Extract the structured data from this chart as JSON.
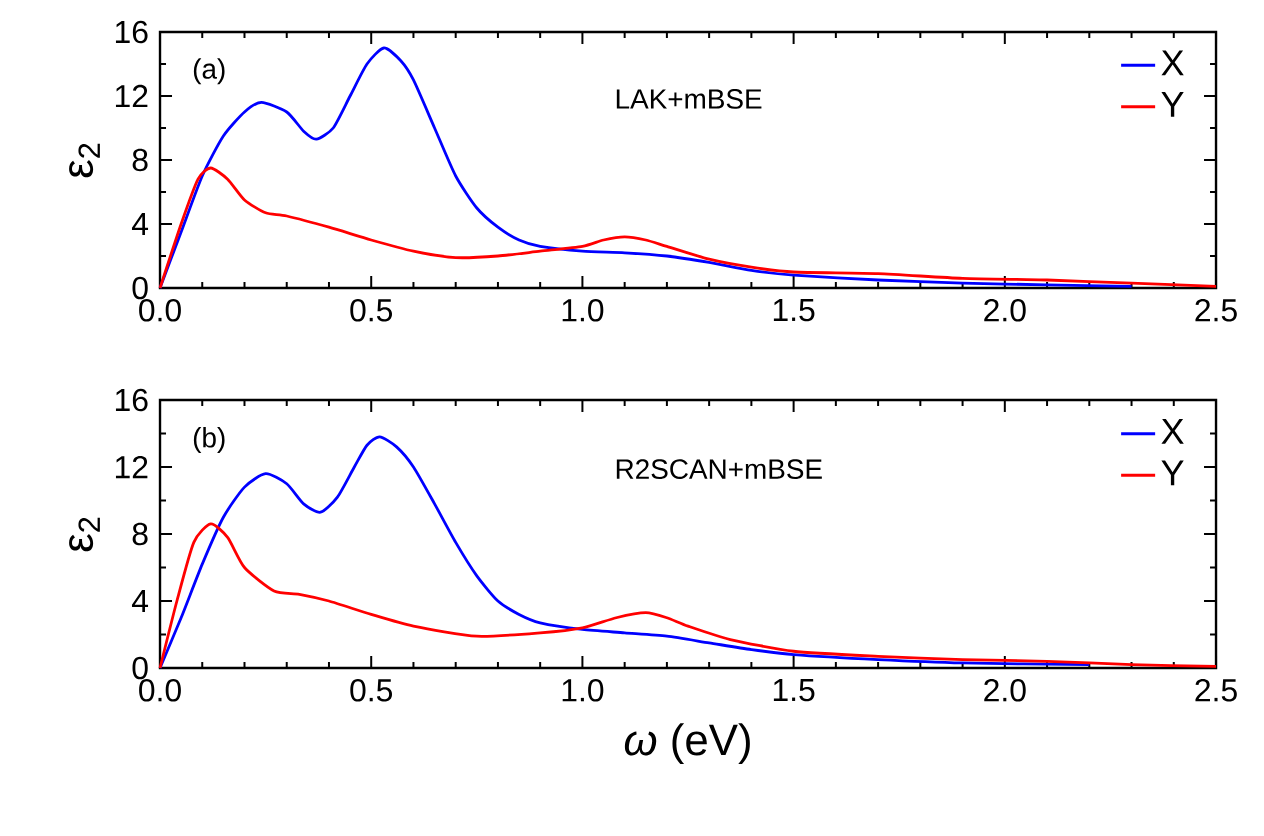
{
  "chart_data": [
    {
      "type": "line",
      "ylabel": "ε$_{2}$",
      "annotations": [
        "(a)",
        "LAK+mBSE"
      ],
      "xlim": [
        0,
        2.5
      ],
      "ylim": [
        0,
        16
      ],
      "xticks": [
        {
          "value": 0,
          "label": "0.0"
        },
        0.5,
        {
          "value": 1,
          "label": "1.0"
        },
        1.5,
        {
          "value": 2,
          "label": "2.0"
        },
        2.5
      ],
      "yticks": [
        0,
        4,
        8,
        12,
        16
      ],
      "legend": "top right",
      "series": [
        {
          "name": "X",
          "color": "#0000ff",
          "x": [
            0,
            0.05,
            0.1,
            0.15,
            0.2,
            0.24,
            0.3,
            0.34,
            0.37,
            0.41,
            0.45,
            0.49,
            0.53,
            0.57,
            0.6,
            0.65,
            0.7,
            0.75,
            0.8,
            0.85,
            0.9,
            1.0,
            1.1,
            1.2,
            1.3,
            1.4,
            1.5,
            1.7,
            1.9,
            2.1,
            2.3
          ],
          "values": [
            0,
            3.5,
            7,
            9.5,
            11,
            11.6,
            11,
            9.8,
            9.3,
            10,
            12,
            14,
            15,
            14.2,
            13,
            10,
            7,
            5,
            3.8,
            3,
            2.6,
            2.3,
            2.2,
            2,
            1.6,
            1.1,
            0.8,
            0.5,
            0.3,
            0.2,
            0.1
          ]
        },
        {
          "name": "Y",
          "color": "#ff0000",
          "x": [
            0,
            0.05,
            0.09,
            0.12,
            0.16,
            0.2,
            0.25,
            0.3,
            0.4,
            0.5,
            0.6,
            0.7,
            0.8,
            0.9,
            1.0,
            1.05,
            1.1,
            1.15,
            1.2,
            1.3,
            1.4,
            1.5,
            1.7,
            1.9,
            2.1,
            2.3,
            2.5
          ],
          "values": [
            0,
            4,
            6.8,
            7.5,
            6.8,
            5.5,
            4.7,
            4.5,
            3.8,
            3.0,
            2.3,
            1.9,
            2.0,
            2.3,
            2.6,
            3.0,
            3.2,
            3.0,
            2.6,
            1.8,
            1.3,
            1.0,
            0.9,
            0.6,
            0.5,
            0.3,
            0.1
          ]
        }
      ]
    },
    {
      "type": "line",
      "ylabel": "ε$_{2}$",
      "xlabel": "*ω* (eV)",
      "annotations": [
        "(b)",
        "R2SCAN+mBSE"
      ],
      "xlim": [
        0,
        2.5
      ],
      "ylim": [
        0,
        16
      ],
      "xticks": [
        {
          "value": 0,
          "label": "0.0"
        },
        0.5,
        {
          "value": 1,
          "label": "1.0"
        },
        1.5,
        {
          "value": 2,
          "label": "2.0"
        },
        2.5
      ],
      "yticks": [
        0,
        4,
        8,
        12,
        16
      ],
      "legend": "top right",
      "series": [
        {
          "name": "X",
          "color": "#0000ff",
          "x": [
            0,
            0.05,
            0.1,
            0.15,
            0.2,
            0.25,
            0.3,
            0.34,
            0.38,
            0.42,
            0.46,
            0.49,
            0.52,
            0.56,
            0.6,
            0.65,
            0.7,
            0.75,
            0.8,
            0.85,
            0.9,
            1.0,
            1.1,
            1.2,
            1.3,
            1.4,
            1.5,
            1.7,
            1.9,
            2.2
          ],
          "values": [
            0,
            3,
            6.2,
            9,
            10.8,
            11.6,
            11,
            9.8,
            9.3,
            10.2,
            12,
            13.3,
            13.8,
            13.2,
            12,
            9.8,
            7.5,
            5.5,
            4,
            3.2,
            2.7,
            2.3,
            2.1,
            1.9,
            1.5,
            1.1,
            0.8,
            0.5,
            0.3,
            0.2
          ]
        },
        {
          "name": "Y",
          "color": "#ff0000",
          "x": [
            0,
            0.04,
            0.08,
            0.12,
            0.16,
            0.2,
            0.27,
            0.33,
            0.4,
            0.5,
            0.6,
            0.75,
            0.9,
            1.0,
            1.08,
            1.15,
            1.2,
            1.25,
            1.35,
            1.5,
            1.7,
            1.9,
            2.1,
            2.3,
            2.5
          ],
          "values": [
            0,
            4,
            7.5,
            8.6,
            7.8,
            6,
            4.6,
            4.4,
            4.0,
            3.2,
            2.5,
            1.9,
            2.1,
            2.4,
            3.0,
            3.3,
            3.0,
            2.5,
            1.7,
            1.0,
            0.7,
            0.5,
            0.4,
            0.2,
            0.1
          ]
        }
      ]
    }
  ]
}
